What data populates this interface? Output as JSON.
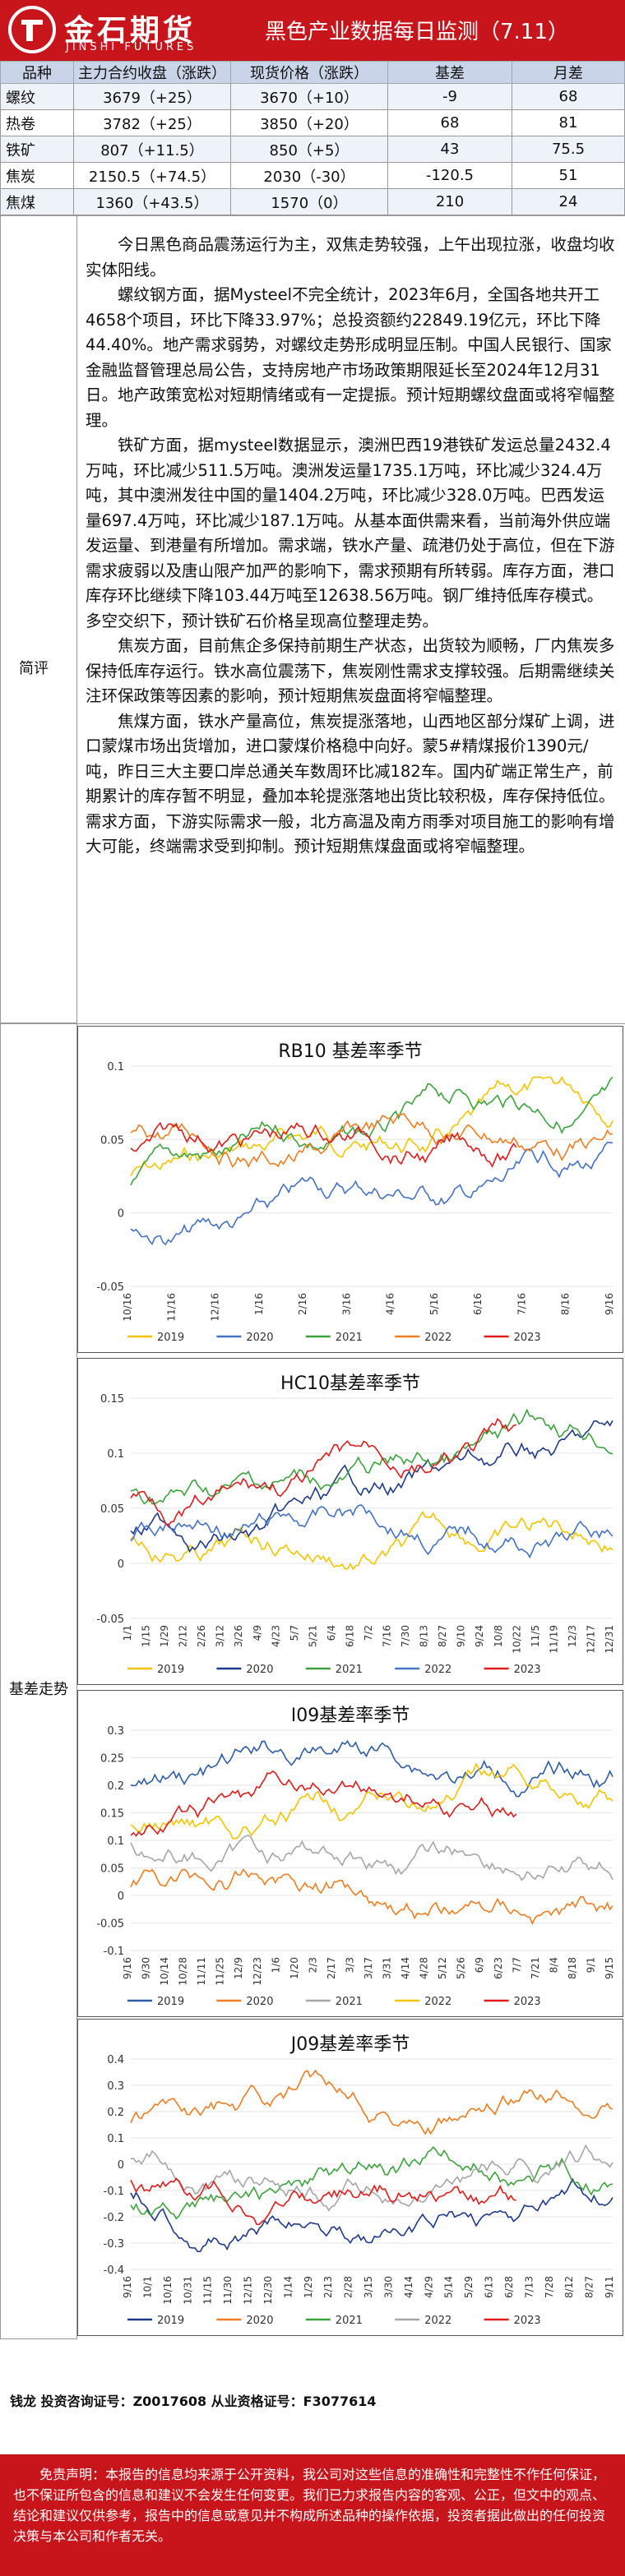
{
  "header": {
    "logo_cn": "金石期货",
    "logo_en": "JINSHI FUTURES",
    "title": "黑色产业数据每日监测（7.11）"
  },
  "table": {
    "headers": [
      "品种",
      "主力合约收盘（涨跌）",
      "现货价格（涨跌）",
      "基差",
      "月差"
    ],
    "rows": [
      [
        "螺纹",
        "3679（+25）",
        "3670（+10）",
        "-9",
        "68"
      ],
      [
        "热卷",
        "3782（+25）",
        "3850（+20）",
        "68",
        "81"
      ],
      [
        "铁矿",
        "807（+11.5）",
        "850（+5）",
        "43",
        "75.5"
      ],
      [
        "焦炭",
        "2150.5（+74.5）",
        "2030（-30）",
        "-120.5",
        "51"
      ],
      [
        "焦煤",
        "1360（+43.5）",
        "1570（0）",
        "210",
        "24"
      ]
    ]
  },
  "summary": {
    "label": "简评",
    "paragraphs": [
      "今日黑色商品震荡运行为主，双焦走势较强，上午出现拉涨，收盘均收实体阳线。",
      "螺纹钢方面，据Mysteel不完全统计，2023年6月，全国各地共开工4658个项目，环比下降33.97%；总投资额约22849.19亿元，环比下降44.40%。地产需求弱势，对螺纹走势形成明显压制。中国人民银行、国家金融监督管理总局公告，支持房地产市场政策期限延长至2024年12月31日。地产政策宽松对短期情绪或有一定提振。预计短期螺纹盘面或将窄幅整理。",
      "铁矿方面，据mysteel数据显示，澳洲巴西19港铁矿发运总量2432.4万吨，环比减少511.5万吨。澳洲发运量1735.1万吨，环比减少324.4万吨，其中澳洲发往中国的量1404.2万吨，环比减少328.0万吨。巴西发运量697.4万吨，环比减少187.1万吨。从基本面供需来看，当前海外供应端发运量、到港量有所增加。需求端，铁水产量、疏港仍处于高位，但在下游需求疲弱以及唐山限产加严的影响下，需求预期有所转弱。库存方面，港口库存环比继续下降103.44万吨至12638.56万吨。钢厂维持低库存模式。多空交织下，预计铁矿石价格呈现高位整理走势。",
      "焦炭方面，目前焦企多保持前期生产状态，出货较为顺畅，厂内焦炭多保持低库存运行。铁水高位震荡下，焦炭刚性需求支撑较强。后期需继续关注环保政策等因素的影响，预计短期焦炭盘面将窄幅整理。",
      "焦煤方面，铁水产量高位，焦炭提涨落地，山西地区部分煤矿上调，进口蒙煤市场出货增加，进口蒙煤价格稳中向好。蒙5#精煤报价1390元/吨，昨日三大主要口岸总通关车数周环比减182车。国内矿端正常生产，前期累计的库存暂不明显，叠加本轮提涨落地出货比较积极，库存保持低位。需求方面，下游实际需求一般，北方高温及南方雨季对项目施工的影响有增大可能，终端需求受到抑制。预计短期焦煤盘面或将窄幅整理。"
    ]
  },
  "basis_label": "基差走势",
  "charts": [
    {
      "title": "RB10 基差率季节",
      "yticks": [
        "0.1",
        "0.05",
        "0",
        "-0.05"
      ],
      "xticks": [
        "10/16",
        "11/16",
        "12/16",
        "1/16",
        "2/16",
        "3/16",
        "4/16",
        "5/16",
        "6/16",
        "7/16",
        "8/16",
        "9/16"
      ],
      "legend": [
        "2019",
        "2020",
        "2021",
        "2022",
        "2023"
      ],
      "colors": [
        "#f5c400",
        "#4472c4",
        "#3ea33e",
        "#f07d22",
        "#e01c1c"
      ]
    },
    {
      "title": "HC10基差率季节",
      "yticks": [
        "0.15",
        "0.1",
        "0.05",
        "0",
        "-0.05"
      ],
      "xticks": [
        "1/1",
        "1/15",
        "1/29",
        "2/12",
        "2/26",
        "3/12",
        "3/26",
        "4/9",
        "4/23",
        "5/7",
        "5/21",
        "6/4",
        "6/18",
        "7/2",
        "7/16",
        "7/30",
        "8/13",
        "8/27",
        "9/10",
        "9/24",
        "10/8",
        "10/22",
        "11/5",
        "11/19",
        "12/3",
        "12/17",
        "12/31"
      ],
      "legend": [
        "2019",
        "2020",
        "2021",
        "2022",
        "2023"
      ],
      "colors": [
        "#f5c400",
        "#1f3a8a",
        "#3ea33e",
        "#4472c4",
        "#e01c1c"
      ]
    },
    {
      "title": "I09基差率季节",
      "yticks": [
        "0.3",
        "0.25",
        "0.2",
        "0.15",
        "0.1",
        "0.05",
        "0",
        "-0.05",
        "-0.1"
      ],
      "xticks": [
        "9/16",
        "9/30",
        "10/14",
        "10/28",
        "11/11",
        "11/25",
        "12/9",
        "12/23",
        "1/6",
        "1/20",
        "2/3",
        "2/17",
        "3/3",
        "3/17",
        "3/31",
        "4/14",
        "4/28",
        "5/12",
        "5/26",
        "6/9",
        "6/23",
        "7/7",
        "7/21",
        "8/4",
        "8/18",
        "9/1",
        "9/15"
      ],
      "legend": [
        "2019",
        "2020",
        "2021",
        "2022",
        "2023"
      ],
      "colors": [
        "#2e5ca8",
        "#f07d22",
        "#a6a6a6",
        "#f5c400",
        "#e01c1c"
      ]
    },
    {
      "title": "J09基差率季节",
      "yticks": [
        "0.4",
        "0.3",
        "0.2",
        "0.1",
        "0",
        "-0.1",
        "-0.2",
        "-0.3",
        "-0.4"
      ],
      "xticks": [
        "9/16",
        "10/1",
        "10/16",
        "10/31",
        "11/15",
        "11/30",
        "12/15",
        "12/30",
        "1/14",
        "1/29",
        "2/13",
        "2/28",
        "3/15",
        "3/30",
        "4/14",
        "4/29",
        "5/14",
        "5/29",
        "6/13",
        "6/28",
        "7/13",
        "7/28",
        "8/12",
        "8/27",
        "9/11"
      ],
      "legend": [
        "2019",
        "2020",
        "2021",
        "2022",
        "2023"
      ],
      "colors": [
        "#1f3a8a",
        "#f07d22",
        "#3ea33e",
        "#a6a6a6",
        "#e01c1c"
      ]
    }
  ],
  "footer": {
    "contact": "钱龙 投资咨询证号：Z0017608 从业资格证号：F3077614",
    "disclaimer": "免责声明：本报告的信息均来源于公开资料，我公司对这些信息的准确性和完整性不作任何保证，也不保证所包含的信息和建议不会发生任何变更。我们已力求报告内容的客观、公正，但文中的观点、结论和建议仅供参考，报告中的信息或意见并不构成所述品种的操作依据，投资者据此做出的任何投资决策与本公司和作者无关。"
  }
}
